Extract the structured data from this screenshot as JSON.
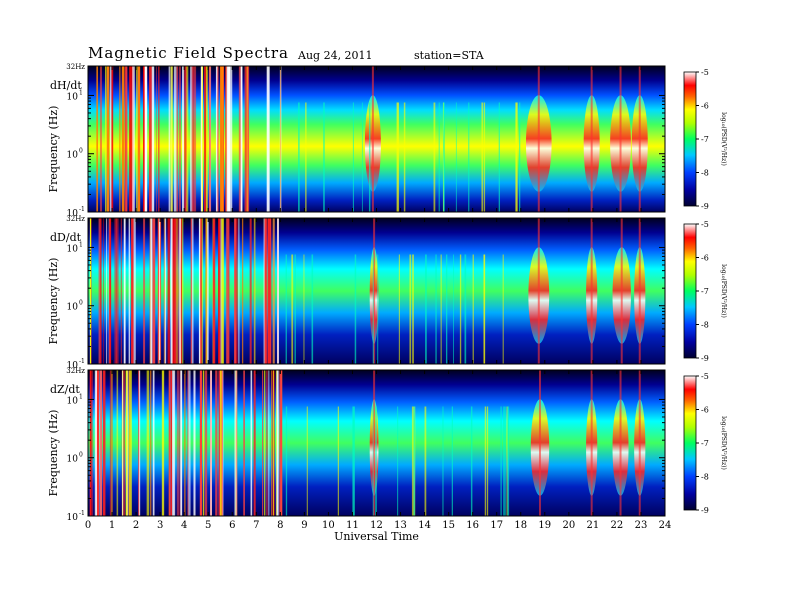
{
  "header": {
    "title": "Magnetic  Field  Spectra",
    "date": "Aug 24, 2011",
    "station": "station=STA"
  },
  "chart_data": {
    "type": "heatmap",
    "xlabel": "Universal Time",
    "xticks": [
      "0",
      "1",
      "2",
      "3",
      "4",
      "5",
      "6",
      "7",
      "8",
      "9",
      "10",
      "11",
      "12",
      "13",
      "14",
      "15",
      "16",
      "17",
      "18",
      "19",
      "20",
      "21",
      "22",
      "23",
      "24"
    ],
    "xlim": [
      0,
      24
    ],
    "ylim_hz": [
      0.1,
      32
    ],
    "log_y": true,
    "ytick_labels": {
      "top": "32Hz",
      "upper": "10",
      "upper_exp": "1",
      "mid": "10",
      "mid_exp": "0",
      "low": "10",
      "low_exp": "-1"
    },
    "colorbar": {
      "label": "log₁₀(PSD(V²/Hz))",
      "ticks": [
        "-5",
        "-6",
        "-7",
        "-8",
        "-9"
      ],
      "range": [
        -9,
        -5
      ]
    },
    "panels": [
      {
        "component": "dH/dt",
        "ylabel": "Frequency  (Hz)",
        "storm_intervals": [
          [
            0.0,
            8.2
          ],
          [
            11.6,
            12.1
          ],
          [
            18.3,
            19.2
          ],
          [
            20.7,
            21.2
          ],
          [
            21.8,
            22.5
          ],
          [
            22.7,
            23.2
          ]
        ]
      },
      {
        "component": "dD/dt",
        "ylabel": "Frequency  (Hz)",
        "storm_intervals": [
          [
            0.0,
            8.2
          ],
          [
            11.8,
            12.0
          ],
          [
            18.4,
            19.1
          ],
          [
            20.8,
            21.1
          ],
          [
            21.9,
            22.5
          ],
          [
            22.8,
            23.1
          ]
        ]
      },
      {
        "component": "dZ/dt",
        "ylabel": "Frequency  (Hz)",
        "storm_intervals": [
          [
            0.0,
            8.2
          ],
          [
            11.8,
            12.0
          ],
          [
            18.5,
            19.1
          ],
          [
            20.8,
            21.1
          ],
          [
            21.9,
            22.4
          ],
          [
            22.8,
            23.1
          ]
        ]
      }
    ]
  }
}
